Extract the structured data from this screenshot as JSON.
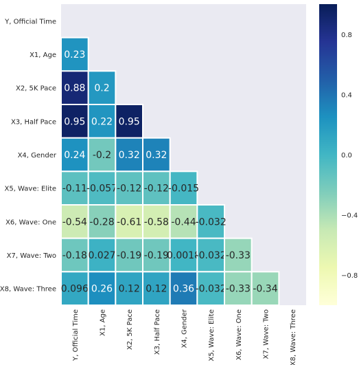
{
  "chart_data": {
    "type": "heatmap",
    "title": "",
    "xlabel": "",
    "ylabel": "",
    "variables": [
      "Y, Official Time",
      "X1, Age",
      "X2, 5K Pace",
      "X3, Half Pace",
      "X4, Gender",
      "X5, Wave: Elite",
      "X6, Wave: One",
      "X7, Wave: Two",
      "X8, Wave: Three"
    ],
    "cells": [
      {
        "row": 1,
        "col": 0,
        "value": 0.23,
        "label": "0.23"
      },
      {
        "row": 2,
        "col": 0,
        "value": 0.88,
        "label": "0.88"
      },
      {
        "row": 2,
        "col": 1,
        "value": 0.2,
        "label": "0.2"
      },
      {
        "row": 3,
        "col": 0,
        "value": 0.95,
        "label": "0.95"
      },
      {
        "row": 3,
        "col": 1,
        "value": 0.22,
        "label": "0.22"
      },
      {
        "row": 3,
        "col": 2,
        "value": 0.95,
        "label": "0.95"
      },
      {
        "row": 4,
        "col": 0,
        "value": 0.24,
        "label": "0.24"
      },
      {
        "row": 4,
        "col": 1,
        "value": -0.2,
        "label": "-0.2"
      },
      {
        "row": 4,
        "col": 2,
        "value": 0.32,
        "label": "0.32"
      },
      {
        "row": 4,
        "col": 3,
        "value": 0.32,
        "label": "0.32"
      },
      {
        "row": 5,
        "col": 0,
        "value": -0.11,
        "label": "-0.11"
      },
      {
        "row": 5,
        "col": 1,
        "value": -0.057,
        "label": "-0.057"
      },
      {
        "row": 5,
        "col": 2,
        "value": -0.12,
        "label": "-0.12"
      },
      {
        "row": 5,
        "col": 3,
        "value": -0.12,
        "label": "-0.12"
      },
      {
        "row": 5,
        "col": 4,
        "value": -0.015,
        "label": "-0.015"
      },
      {
        "row": 6,
        "col": 0,
        "value": -0.54,
        "label": "-0.54"
      },
      {
        "row": 6,
        "col": 1,
        "value": -0.28,
        "label": "-0.28"
      },
      {
        "row": 6,
        "col": 2,
        "value": -0.61,
        "label": "-0.61"
      },
      {
        "row": 6,
        "col": 3,
        "value": -0.58,
        "label": "-0.58"
      },
      {
        "row": 6,
        "col": 4,
        "value": -0.44,
        "label": "-0.44"
      },
      {
        "row": 6,
        "col": 5,
        "value": -0.032,
        "label": "-0.032"
      },
      {
        "row": 7,
        "col": 0,
        "value": -0.18,
        "label": "-0.18"
      },
      {
        "row": 7,
        "col": 1,
        "value": 0.027,
        "label": "0.027"
      },
      {
        "row": 7,
        "col": 2,
        "value": -0.19,
        "label": "-0.19"
      },
      {
        "row": 7,
        "col": 3,
        "value": -0.19,
        "label": "-0.19"
      },
      {
        "row": 7,
        "col": 4,
        "value": 0.0018,
        "label": "0.0018"
      },
      {
        "row": 7,
        "col": 5,
        "value": -0.032,
        "label": "-0.032"
      },
      {
        "row": 7,
        "col": 6,
        "value": -0.33,
        "label": "-0.33"
      },
      {
        "row": 8,
        "col": 0,
        "value": 0.096,
        "label": "0.096"
      },
      {
        "row": 8,
        "col": 1,
        "value": 0.26,
        "label": "0.26"
      },
      {
        "row": 8,
        "col": 2,
        "value": 0.12,
        "label": "0.12"
      },
      {
        "row": 8,
        "col": 3,
        "value": 0.12,
        "label": "0.12"
      },
      {
        "row": 8,
        "col": 4,
        "value": 0.36,
        "label": "0.36"
      },
      {
        "row": 8,
        "col": 5,
        "value": -0.032,
        "label": "-0.032"
      },
      {
        "row": 8,
        "col": 6,
        "value": -0.33,
        "label": "-0.33"
      },
      {
        "row": 8,
        "col": 7,
        "value": -0.34,
        "label": "-0.34"
      }
    ],
    "mask": "upper-triangle-including-diagonal",
    "colorbar": {
      "vmin": -1,
      "vmax": 1,
      "colormap": "YlGnBu",
      "ticks": [
        {
          "value": 0.8,
          "label": "0.8"
        },
        {
          "value": 0.4,
          "label": "0.4"
        },
        {
          "value": 0.0,
          "label": "0.0"
        },
        {
          "value": -0.4,
          "label": "−0.4"
        },
        {
          "value": -0.8,
          "label": "−0.8"
        }
      ]
    },
    "grid": false,
    "legend": "colorbar-right"
  },
  "colors": {
    "background": "#eaeaf2",
    "cell_border": "#ffffff",
    "text_dark": "#262626",
    "text_light": "#ffffff"
  }
}
